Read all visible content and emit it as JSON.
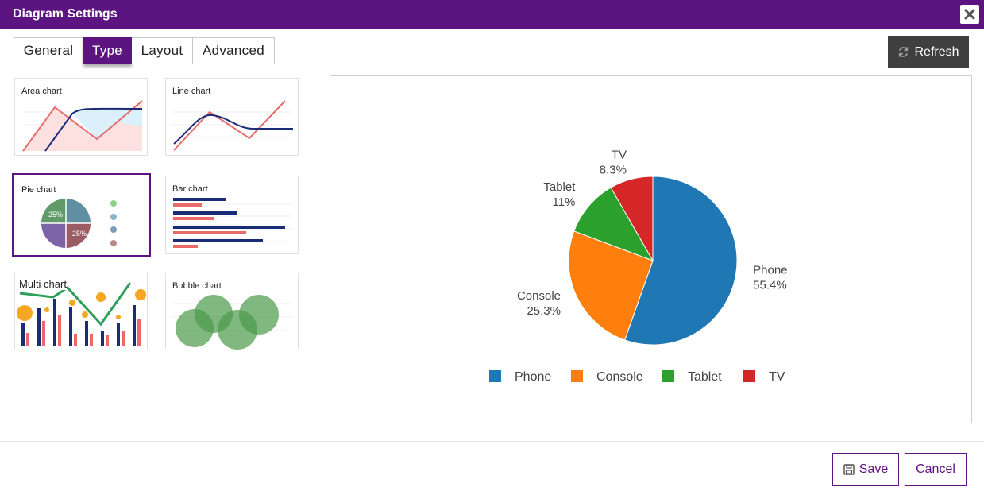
{
  "dialog": {
    "title": "Diagram Settings"
  },
  "tabs": [
    {
      "label": "General",
      "active": false
    },
    {
      "label": "Type",
      "active": true
    },
    {
      "label": "Layout",
      "active": false
    },
    {
      "label": "Advanced",
      "active": false
    }
  ],
  "toolbar": {
    "refresh_label": "Refresh",
    "refresh_icon": "refresh-icon"
  },
  "chart_types": [
    {
      "label": "Area chart",
      "selected": false
    },
    {
      "label": "Line chart",
      "selected": false
    },
    {
      "label": "Pie chart",
      "selected": true,
      "badges": [
        "25%",
        "25%"
      ]
    },
    {
      "label": "Bar chart",
      "selected": false
    },
    {
      "label": "Multi chart",
      "selected": false
    },
    {
      "label": "Bubble chart",
      "selected": false
    }
  ],
  "footer": {
    "save_label": "Save",
    "cancel_label": "Cancel"
  },
  "colors": {
    "accent": "#5c1580",
    "refresh_bg": "#3f3f3f"
  },
  "chart_data": {
    "type": "pie",
    "categories": [
      "Phone",
      "Console",
      "Tablet",
      "TV"
    ],
    "values": [
      55.4,
      25.3,
      11,
      8.3
    ],
    "value_labels": [
      "55.4%",
      "25.3%",
      "11%",
      "8.3%"
    ],
    "colors": [
      "#1f77b4",
      "#ff7f0e",
      "#2ca02c",
      "#d62728"
    ],
    "legend": "bottom"
  }
}
